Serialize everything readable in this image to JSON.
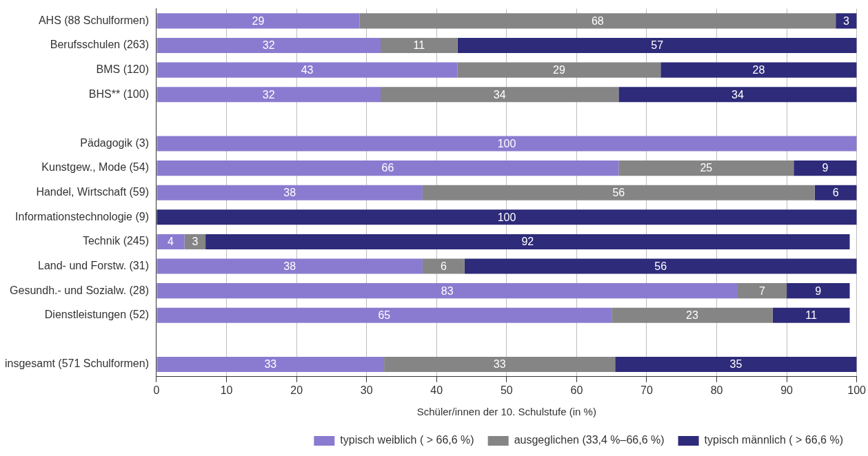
{
  "chart_data": {
    "type": "bar",
    "orientation": "horizontal",
    "stacked": true,
    "grid": "x",
    "legend": "bottom right",
    "xlabel": "Schüler/innen der 10. Schulstufe (in %)",
    "categories": [
      "AHS (88 Schulformen)",
      "Berufsschulen (263)",
      "BMS (120)",
      "BHS** (100)",
      null,
      "Pädagogik (3)",
      "Kunstgew., Mode (54)",
      "Handel, Wirtschaft (59)",
      "Informationstechnologie (9)",
      "Technik (245)",
      "Land- und Forstw. (31)",
      "Gesundh.- und Sozialw. (28)",
      "Dienstleistungen (52)",
      null,
      "insgesamt (571 Schulformen)"
    ],
    "xlim": [
      0,
      100
    ],
    "xticks": [
      0,
      10,
      20,
      30,
      40,
      50,
      60,
      70,
      80,
      90,
      100
    ],
    "series": [
      {
        "name": "typisch weiblich ( > 66,6 %)",
        "color": "#8b7bd0",
        "values": [
          29,
          32,
          43,
          32,
          null,
          100,
          66,
          38,
          null,
          4,
          38,
          83,
          65,
          null,
          32.5
        ],
        "value_labels": [
          "29",
          "32",
          "43",
          "32",
          null,
          "100",
          "66",
          "38",
          null,
          "4",
          "38",
          "83",
          "65",
          null,
          "33"
        ]
      },
      {
        "name": "ausgeglichen (33,4 %–66,6 %)",
        "color": "#858585",
        "values": [
          68,
          11,
          29,
          34,
          null,
          null,
          25,
          56,
          null,
          3,
          6,
          7,
          23,
          null,
          33
        ],
        "value_labels": [
          "68",
          "11",
          "29",
          "34",
          null,
          null,
          "25",
          "56",
          null,
          "3",
          "6",
          "7",
          "23",
          null,
          "33"
        ]
      },
      {
        "name": "typisch männlich ( > 66,6 %)",
        "color": "#2e2b7a",
        "values": [
          3,
          57,
          28,
          34,
          null,
          null,
          9,
          6,
          100,
          92,
          56,
          9,
          11,
          null,
          34.5
        ],
        "value_labels": [
          "3",
          "57",
          "28",
          "34",
          null,
          null,
          "9",
          "6",
          "100",
          "92",
          "56",
          "9",
          "11",
          null,
          "35"
        ]
      }
    ]
  }
}
